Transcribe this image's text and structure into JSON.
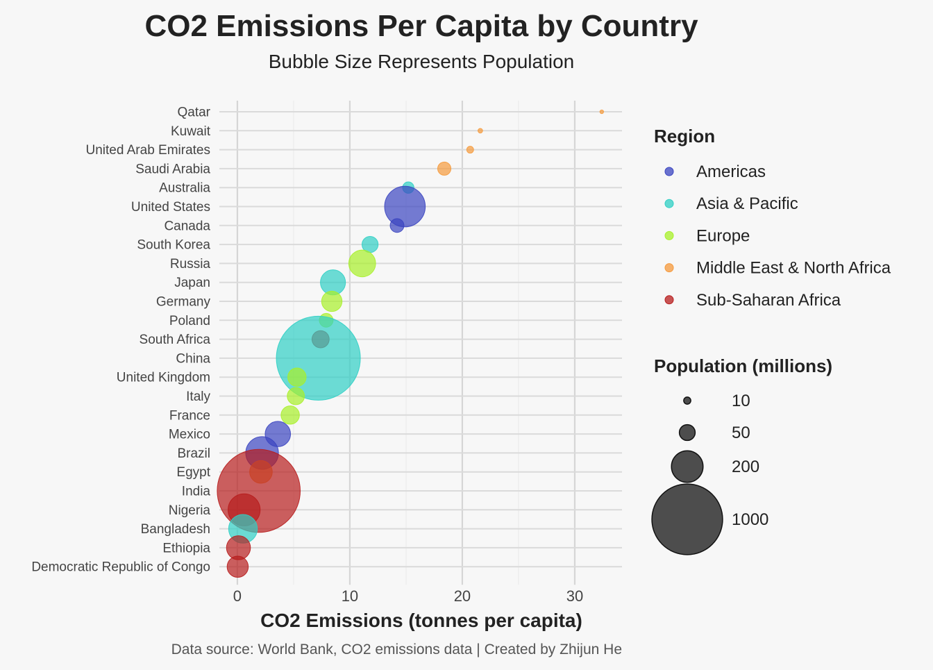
{
  "chart_data": {
    "type": "scatter",
    "title": "CO2 Emissions Per Capita by Country",
    "subtitle": "Bubble Size Represents Population",
    "xlabel": "CO2 Emissions (tonnes per capita)",
    "ylabel": "",
    "caption": "Data source: World Bank, CO2 emissions data | Created by Zhijun He",
    "xlim": [
      -1.6,
      34.2
    ],
    "xticks": [
      0,
      10,
      20,
      30
    ],
    "grid": true,
    "legend_placement": "right",
    "region_legend_title": "Region",
    "size_legend_title": "Population (millions)",
    "regions": [
      {
        "name": "Americas",
        "color": "#3a44c0"
      },
      {
        "name": "Asia & Pacific",
        "color": "#2fcfc4"
      },
      {
        "name": "Europe",
        "color": "#a8f02a"
      },
      {
        "name": "Middle East & North Africa",
        "color": "#f59a3c"
      },
      {
        "name": "Sub-Saharan Africa",
        "color": "#b71c1c"
      }
    ],
    "size_legend": [
      {
        "label": "10",
        "value": 10
      },
      {
        "label": "50",
        "value": 50
      },
      {
        "label": "200",
        "value": 200
      },
      {
        "label": "1000",
        "value": 1000
      }
    ],
    "points": [
      {
        "country": "Qatar",
        "co2": 32.4,
        "population": 2.7,
        "region": "Middle East & North Africa"
      },
      {
        "country": "Kuwait",
        "co2": 21.6,
        "population": 4.3,
        "region": "Middle East & North Africa"
      },
      {
        "country": "United Arab Emirates",
        "co2": 20.7,
        "population": 9.4,
        "region": "Middle East & North Africa"
      },
      {
        "country": "Saudi Arabia",
        "co2": 18.4,
        "population": 35,
        "region": "Middle East & North Africa"
      },
      {
        "country": "Australia",
        "co2": 15.2,
        "population": 25.7,
        "region": "Asia & Pacific"
      },
      {
        "country": "United States",
        "co2": 14.9,
        "population": 331,
        "region": "Americas"
      },
      {
        "country": "Canada",
        "co2": 14.2,
        "population": 38,
        "region": "Americas"
      },
      {
        "country": "South Korea",
        "co2": 11.8,
        "population": 51.8,
        "region": "Asia & Pacific"
      },
      {
        "country": "Russia",
        "co2": 11.1,
        "population": 144,
        "region": "Europe"
      },
      {
        "country": "Japan",
        "co2": 8.5,
        "population": 125.8,
        "region": "Asia & Pacific"
      },
      {
        "country": "Germany",
        "co2": 8.4,
        "population": 83.2,
        "region": "Europe"
      },
      {
        "country": "Poland",
        "co2": 7.9,
        "population": 37.9,
        "region": "Europe"
      },
      {
        "country": "South Africa",
        "co2": 7.4,
        "population": 59.3,
        "region": "Sub-Saharan Africa"
      },
      {
        "country": "China",
        "co2": 7.2,
        "population": 1412,
        "region": "Asia & Pacific"
      },
      {
        "country": "United Kingdom",
        "co2": 5.3,
        "population": 67.2,
        "region": "Europe"
      },
      {
        "country": "Italy",
        "co2": 5.2,
        "population": 59.1,
        "region": "Europe"
      },
      {
        "country": "France",
        "co2": 4.7,
        "population": 67.4,
        "region": "Europe"
      },
      {
        "country": "Mexico",
        "co2": 3.6,
        "population": 128.9,
        "region": "Americas"
      },
      {
        "country": "Brazil",
        "co2": 2.2,
        "population": 214,
        "region": "Americas"
      },
      {
        "country": "Egypt",
        "co2": 2.1,
        "population": 102.3,
        "region": "Middle East & North Africa"
      },
      {
        "country": "India",
        "co2": 1.9,
        "population": 1380,
        "region": "Sub-Saharan Africa"
      },
      {
        "country": "Nigeria",
        "co2": 0.6,
        "population": 206,
        "region": "Sub-Saharan Africa"
      },
      {
        "country": "Bangladesh",
        "co2": 0.5,
        "population": 164.7,
        "region": "Asia & Pacific"
      },
      {
        "country": "Ethiopia",
        "co2": 0.1,
        "population": 115,
        "region": "Sub-Saharan Africa"
      },
      {
        "country": "Democratic Republic of Congo",
        "co2": 0.03,
        "population": 89.6,
        "region": "Sub-Saharan Africa"
      }
    ]
  }
}
